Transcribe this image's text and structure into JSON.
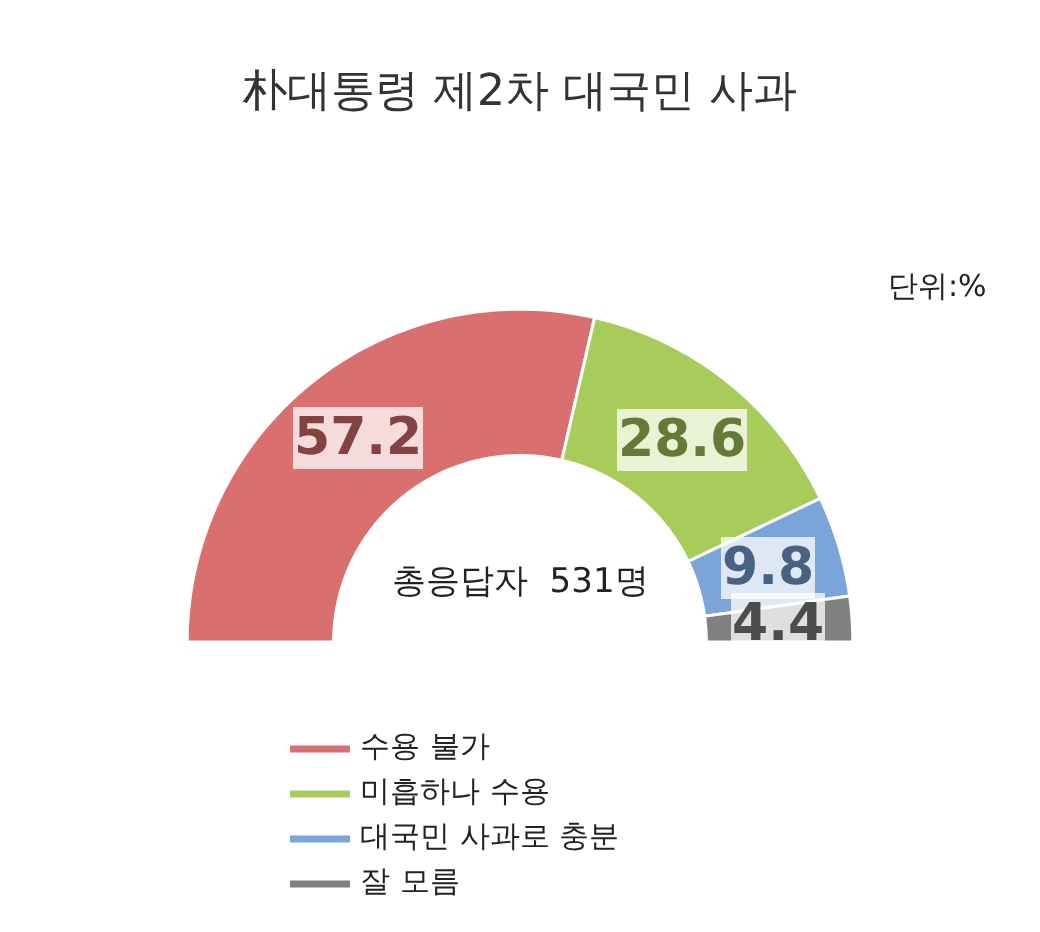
{
  "chart_data": {
    "type": "donut",
    "title": "朴대통령 제2차 대국민 사과",
    "annotations": [
      "단위:%",
      "총응답자  531명"
    ],
    "categories": [
      "수용 불가",
      "미흡하나 수용",
      "대국민 사과로 충분",
      "잘 모름"
    ],
    "values": [
      57.2,
      28.6,
      9.8,
      4.4
    ],
    "colors": [
      "#d9706f",
      "#a8cc5a",
      "#7ba4d8",
      "#808080"
    ],
    "data_labels": true,
    "legend": "bottom"
  }
}
